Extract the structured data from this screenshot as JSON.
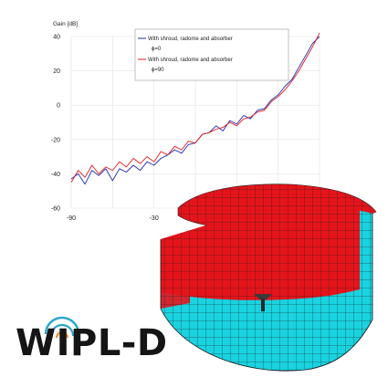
{
  "chart_data": {
    "type": "line",
    "ylabel": "Gain [dB]",
    "x_ticks": [
      -90,
      -30
    ],
    "y_ticks": [
      40,
      20,
      0,
      -20,
      -40,
      -60
    ],
    "xlim": [
      -90,
      90
    ],
    "ylim": [
      -60,
      40
    ],
    "grid": true,
    "legend_position": "top-right",
    "series": [
      {
        "name": "With shroud, radome and absorber φ=0",
        "color": "#1f2bb5",
        "x": [
          -90,
          -85,
          -80,
          -75,
          -70,
          -65,
          -60,
          -55,
          -50,
          -45,
          -40,
          -35,
          -30,
          -25,
          -20,
          -15,
          -10,
          -5,
          0,
          5,
          10,
          15,
          20,
          25,
          30,
          35,
          40,
          45,
          50,
          55,
          60,
          65,
          70,
          75,
          80,
          85,
          90
        ],
        "y": [
          -43,
          -40,
          -46,
          -38,
          -41,
          -37,
          -44,
          -37,
          -39,
          -35,
          -38,
          -33,
          -35,
          -31,
          -29,
          -26,
          -28,
          -23,
          -22,
          -17,
          -16,
          -12,
          -15,
          -9,
          -11,
          -6,
          -8,
          -3,
          -2,
          3,
          6,
          11,
          15,
          22,
          29,
          36,
          40
        ]
      },
      {
        "name": "With shroud, radome and absorber φ=90",
        "color": "#e01b1b",
        "x": [
          -90,
          -85,
          -80,
          -75,
          -70,
          -65,
          -60,
          -55,
          -50,
          -45,
          -40,
          -35,
          -30,
          -25,
          -20,
          -15,
          -10,
          -5,
          0,
          5,
          10,
          15,
          20,
          25,
          30,
          35,
          40,
          45,
          50,
          55,
          60,
          65,
          70,
          75,
          80,
          85,
          90
        ],
        "y": [
          -45,
          -38,
          -42,
          -35,
          -40,
          -36,
          -38,
          -33,
          -36,
          -31,
          -34,
          -30,
          -33,
          -27,
          -29,
          -24,
          -26,
          -21,
          -22,
          -17,
          -16,
          -14,
          -13,
          -10,
          -12,
          -8,
          -7,
          -4,
          -3,
          2,
          5,
          9,
          14,
          20,
          27,
          34,
          42
        ]
      }
    ]
  },
  "legend": {
    "entry1_name": "With shroud, radome and absorber",
    "entry1_sub": "ϕ=0",
    "entry2_name": "With shroud, radome and absorber",
    "entry2_sub": "ϕ=90"
  },
  "logo": {
    "text": "WIPL-D",
    "color": "#151515",
    "arc_color": "#2aa6c8"
  },
  "model": {
    "top_color": "#e5141b",
    "bottom_color": "#19d3e0",
    "mesh_color": "#1a1a1a"
  }
}
